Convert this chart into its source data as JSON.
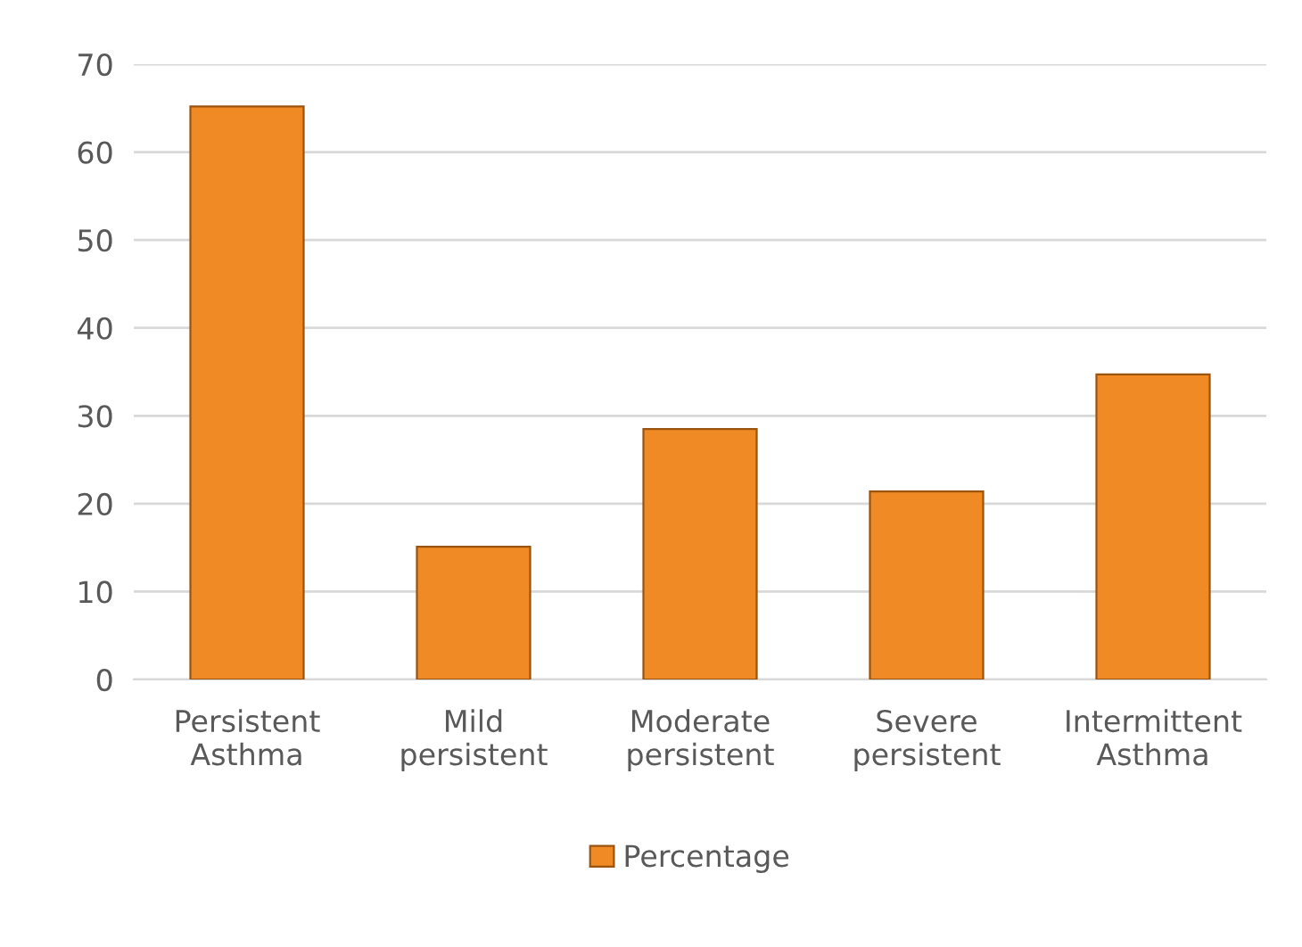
{
  "chart_data": {
    "type": "bar",
    "categories": [
      "Persistent\nAsthma",
      "Mild\npersistent",
      "Moderate\npersistent",
      "Severe\npersistent",
      "Intermittent\nAsthma"
    ],
    "series": [
      {
        "name": "Percentage",
        "color": "#f08a24",
        "values": [
          65.2,
          15.1,
          28.5,
          21.4,
          34.7
        ]
      }
    ],
    "ylim": [
      0,
      70
    ],
    "yticks": [
      0,
      10,
      20,
      30,
      40,
      50,
      60,
      70
    ],
    "grid": "y",
    "legend": "bottom"
  }
}
